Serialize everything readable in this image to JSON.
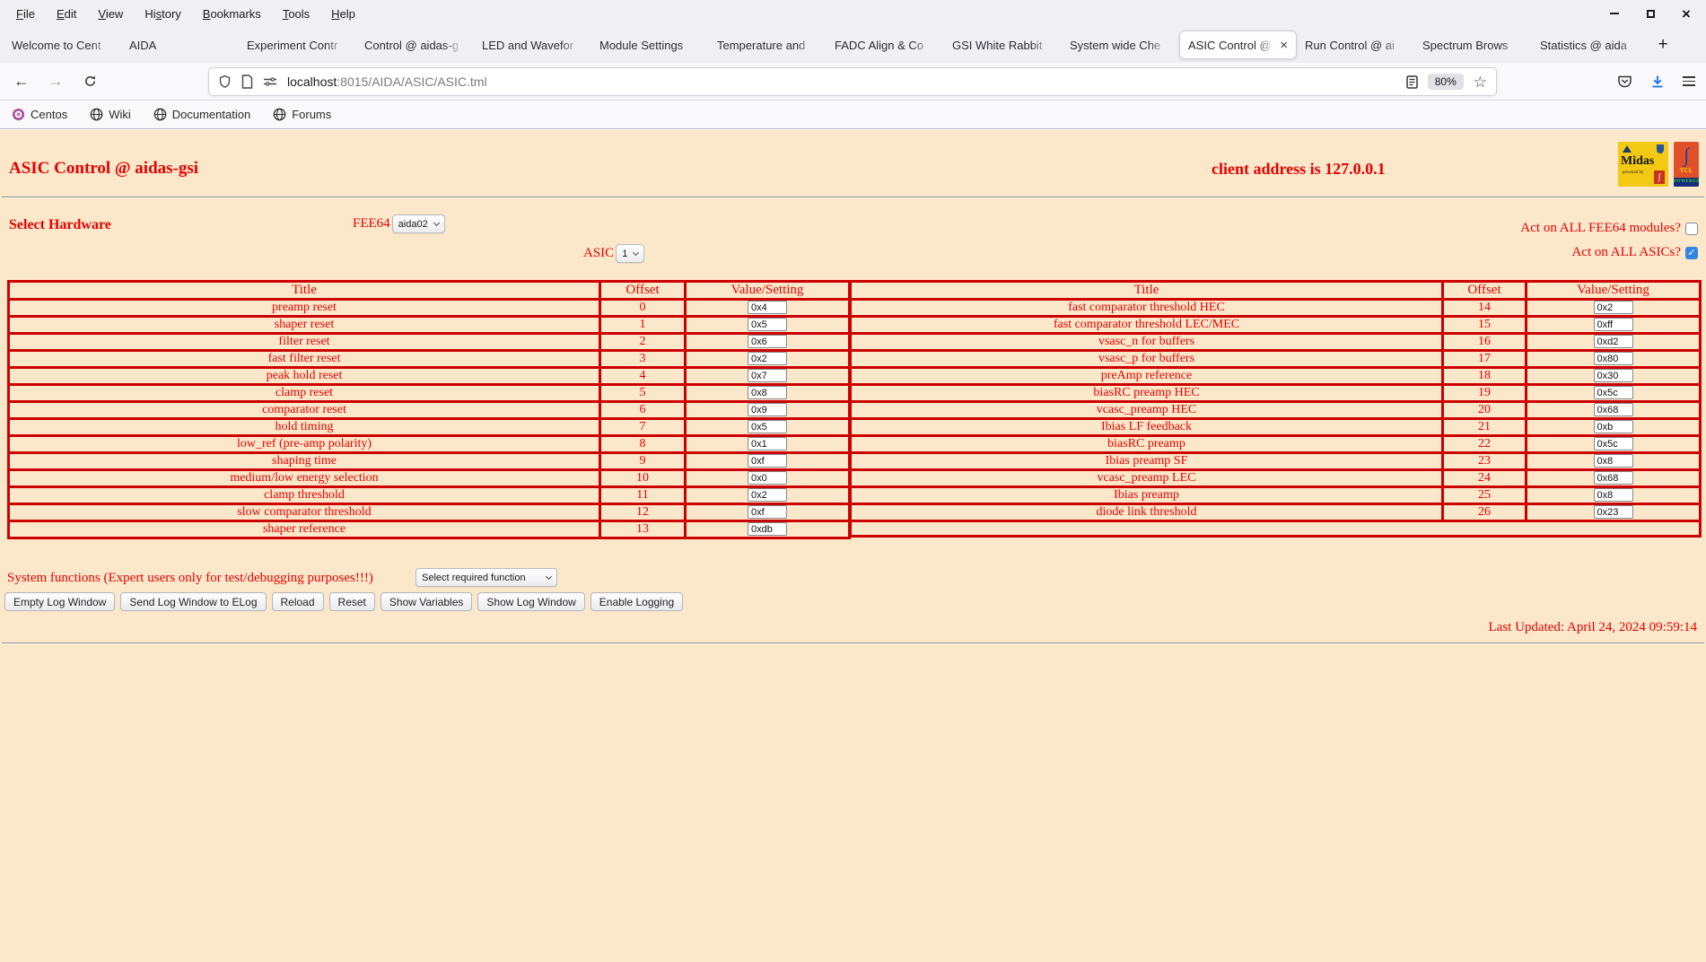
{
  "colors": {
    "page_bg": "#fbe8cb",
    "red": "#e60000",
    "table_border": "#cc0000",
    "chrome_bg": "#f0f0f4",
    "toolbar_bg": "#f9f9fb",
    "checkbox_blue": "#3584e4",
    "download_blue": "#1473e6"
  },
  "icons": {
    "minimize-icon": "–",
    "maximize-icon": "□",
    "close-icon": "×",
    "back-icon": "←",
    "forward-icon": "→",
    "reload-icon": "↻",
    "shield-icon": "shield outline",
    "page-icon": "page outline",
    "tuning-icon": "sliders",
    "reader-view-icon": "reader page",
    "star-icon": "☆",
    "pocket-icon": "pocket shield",
    "download-icon": "↓",
    "hamburger-menu-icon": "☰",
    "new-tab-icon": "+",
    "tab-close-icon": "×",
    "globe-icon": "globe",
    "centos-icon": "centos flower",
    "dropdown-chevron-icon": "⌄",
    "checkmark-icon": "✓"
  },
  "browser": {
    "menubar": [
      {
        "label": "File",
        "u": 0
      },
      {
        "label": "Edit",
        "u": 0
      },
      {
        "label": "View",
        "u": 0
      },
      {
        "label": "History",
        "u": 2
      },
      {
        "label": "Bookmarks",
        "u": 0
      },
      {
        "label": "Tools",
        "u": 0
      },
      {
        "label": "Help",
        "u": 0
      }
    ],
    "tabs": [
      {
        "label": "Welcome to Cent",
        "active": false
      },
      {
        "label": "AIDA",
        "active": false
      },
      {
        "label": "Experiment Contr",
        "active": false
      },
      {
        "label": "Control @ aidas-g",
        "active": false
      },
      {
        "label": "LED and Wavefor",
        "active": false
      },
      {
        "label": "Module Settings",
        "active": false
      },
      {
        "label": "Temperature and",
        "active": false
      },
      {
        "label": "FADC Align & Co",
        "active": false
      },
      {
        "label": "GSI White Rabbit",
        "active": false
      },
      {
        "label": "System wide Che",
        "active": false
      },
      {
        "label": "ASIC Control @",
        "active": true
      },
      {
        "label": "Run Control @ ai",
        "active": false
      },
      {
        "label": "Spectrum Brows",
        "active": false
      },
      {
        "label": "Statistics @ aida",
        "active": false
      }
    ],
    "new_tab_label": "+",
    "back_glyph": "←",
    "forward_glyph": "→",
    "urlbar": {
      "host": "localhost",
      "path": ":8015/AIDA/ASIC/ASIC.tml",
      "zoom_badge": "80%"
    },
    "bookmarks": [
      {
        "label": "Centos",
        "icon": "centos-icon"
      },
      {
        "label": "Wiki",
        "icon": "globe-icon"
      },
      {
        "label": "Documentation",
        "icon": "globe-icon"
      },
      {
        "label": "Forums",
        "icon": "globe-icon"
      }
    ]
  },
  "page": {
    "title": "ASIC Control @ aidas-gsi",
    "client_address": "client address is 127.0.0.1",
    "select_hardware_label": "Select Hardware",
    "fee64": {
      "label": "FEE64",
      "value": "aida02"
    },
    "asic": {
      "label": "ASIC",
      "value": "1"
    },
    "act_all_fee64": {
      "label": "Act on ALL FEE64 modules?",
      "checked": false
    },
    "act_all_asics": {
      "label": "Act on ALL ASICs?",
      "checked": true
    },
    "table": {
      "headers": [
        "Title",
        "Offset",
        "Value/Setting"
      ],
      "left_rows": [
        {
          "title": "preamp reset",
          "offset": "0",
          "value": "0x4"
        },
        {
          "title": "shaper reset",
          "offset": "1",
          "value": "0x5"
        },
        {
          "title": "filter reset",
          "offset": "2",
          "value": "0x6"
        },
        {
          "title": "fast filter reset",
          "offset": "3",
          "value": "0x2"
        },
        {
          "title": "peak hold reset",
          "offset": "4",
          "value": "0x7"
        },
        {
          "title": "clamp reset",
          "offset": "5",
          "value": "0x8"
        },
        {
          "title": "comparator reset",
          "offset": "6",
          "value": "0x9"
        },
        {
          "title": "hold timing",
          "offset": "7",
          "value": "0x5"
        },
        {
          "title": "low_ref (pre-amp polarity)",
          "offset": "8",
          "value": "0x1"
        },
        {
          "title": "shaping time",
          "offset": "9",
          "value": "0xf"
        },
        {
          "title": "medium/low energy selection",
          "offset": "10",
          "value": "0x0"
        },
        {
          "title": "clamp threshold",
          "offset": "11",
          "value": "0x2"
        },
        {
          "title": "slow comparator threshold",
          "offset": "12",
          "value": "0xf"
        },
        {
          "title": "shaper reference",
          "offset": "13",
          "value": "0xdb"
        }
      ],
      "right_rows": [
        {
          "title": "fast comparator threshold HEC",
          "offset": "14",
          "value": "0x2"
        },
        {
          "title": "fast comparator threshold LEC/MEC",
          "offset": "15",
          "value": "0xff"
        },
        {
          "title": "vsasc_n for buffers",
          "offset": "16",
          "value": "0xd2"
        },
        {
          "title": "vsasc_p for buffers",
          "offset": "17",
          "value": "0x80"
        },
        {
          "title": "preAmp reference",
          "offset": "18",
          "value": "0x30"
        },
        {
          "title": "biasRC preamp HEC",
          "offset": "19",
          "value": "0x5c"
        },
        {
          "title": "vcasc_preamp HEC",
          "offset": "20",
          "value": "0x68"
        },
        {
          "title": "Ibias LF feedback",
          "offset": "21",
          "value": "0xb"
        },
        {
          "title": "biasRC preamp",
          "offset": "22",
          "value": "0x5c"
        },
        {
          "title": "Ibias preamp SF",
          "offset": "23",
          "value": "0x8"
        },
        {
          "title": "vcasc_preamp LEC",
          "offset": "24",
          "value": "0x68"
        },
        {
          "title": "Ibias preamp",
          "offset": "25",
          "value": "0x8"
        },
        {
          "title": "diode link threshold",
          "offset": "26",
          "value": "0x23"
        }
      ]
    },
    "system_functions": {
      "label": "System functions (Expert users only for test/debugging purposes!!!)",
      "value": "Select required function"
    },
    "action_buttons": [
      "Empty Log Window",
      "Send Log Window to ELog",
      "Reload",
      "Reset",
      "Show Variables",
      "Show Log Window",
      "Enable Logging"
    ],
    "last_updated": "Last Updated: April 24, 2024 09:59:14",
    "logos": {
      "midas_text": "Midas",
      "midas_sub": "powered by",
      "tcl_text": "TCL",
      "tcl_sub": "POWERED"
    }
  }
}
